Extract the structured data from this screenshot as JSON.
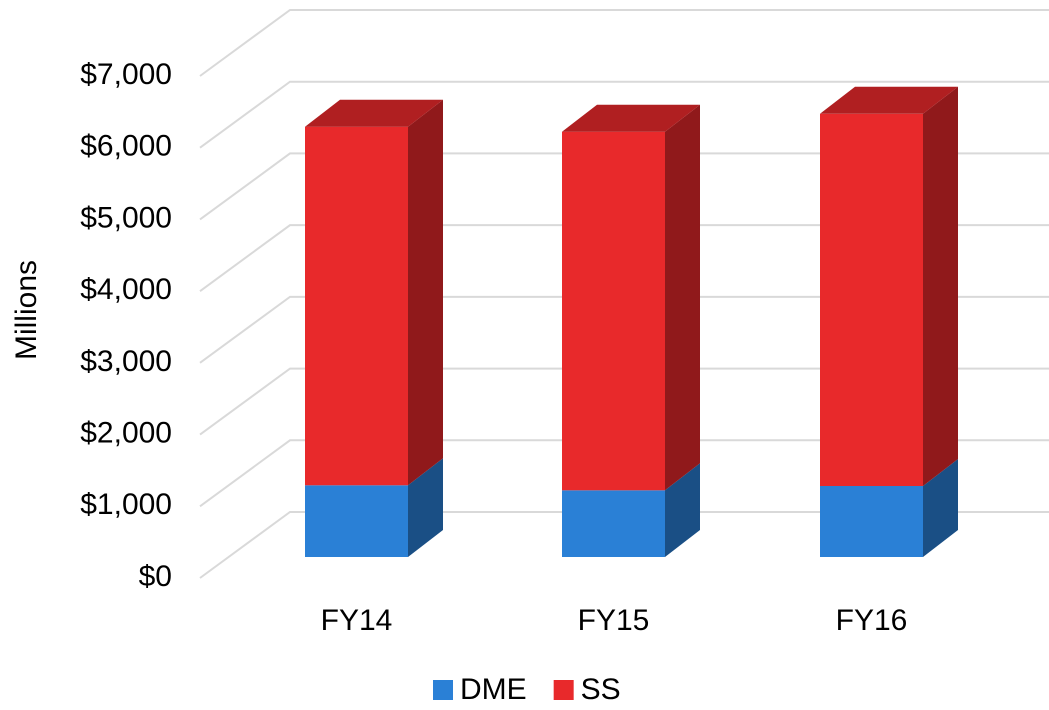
{
  "chart_data": {
    "type": "bar3d_stacked",
    "y_axis_label": "Millions",
    "categories": [
      "FY14",
      "FY15",
      "FY16"
    ],
    "series": [
      {
        "name": "DME",
        "color": "#2a80d6",
        "values": [
          1000,
          930,
          990
        ]
      },
      {
        "name": "SS",
        "color": "#e8292b",
        "values": [
          5000,
          5000,
          5190
        ]
      }
    ],
    "ylim": [
      0,
      7000
    ],
    "yticks": [
      {
        "value": 0,
        "label": "$0"
      },
      {
        "value": 1000,
        "label": "$1,000"
      },
      {
        "value": 2000,
        "label": "$2,000"
      },
      {
        "value": 3000,
        "label": "$3,000"
      },
      {
        "value": 4000,
        "label": "$4,000"
      },
      {
        "value": 5000,
        "label": "$5,000"
      },
      {
        "value": 6000,
        "label": "$6,000"
      },
      {
        "value": 7000,
        "label": "$7,000"
      }
    ],
    "grid": true,
    "legend": "bottom"
  }
}
